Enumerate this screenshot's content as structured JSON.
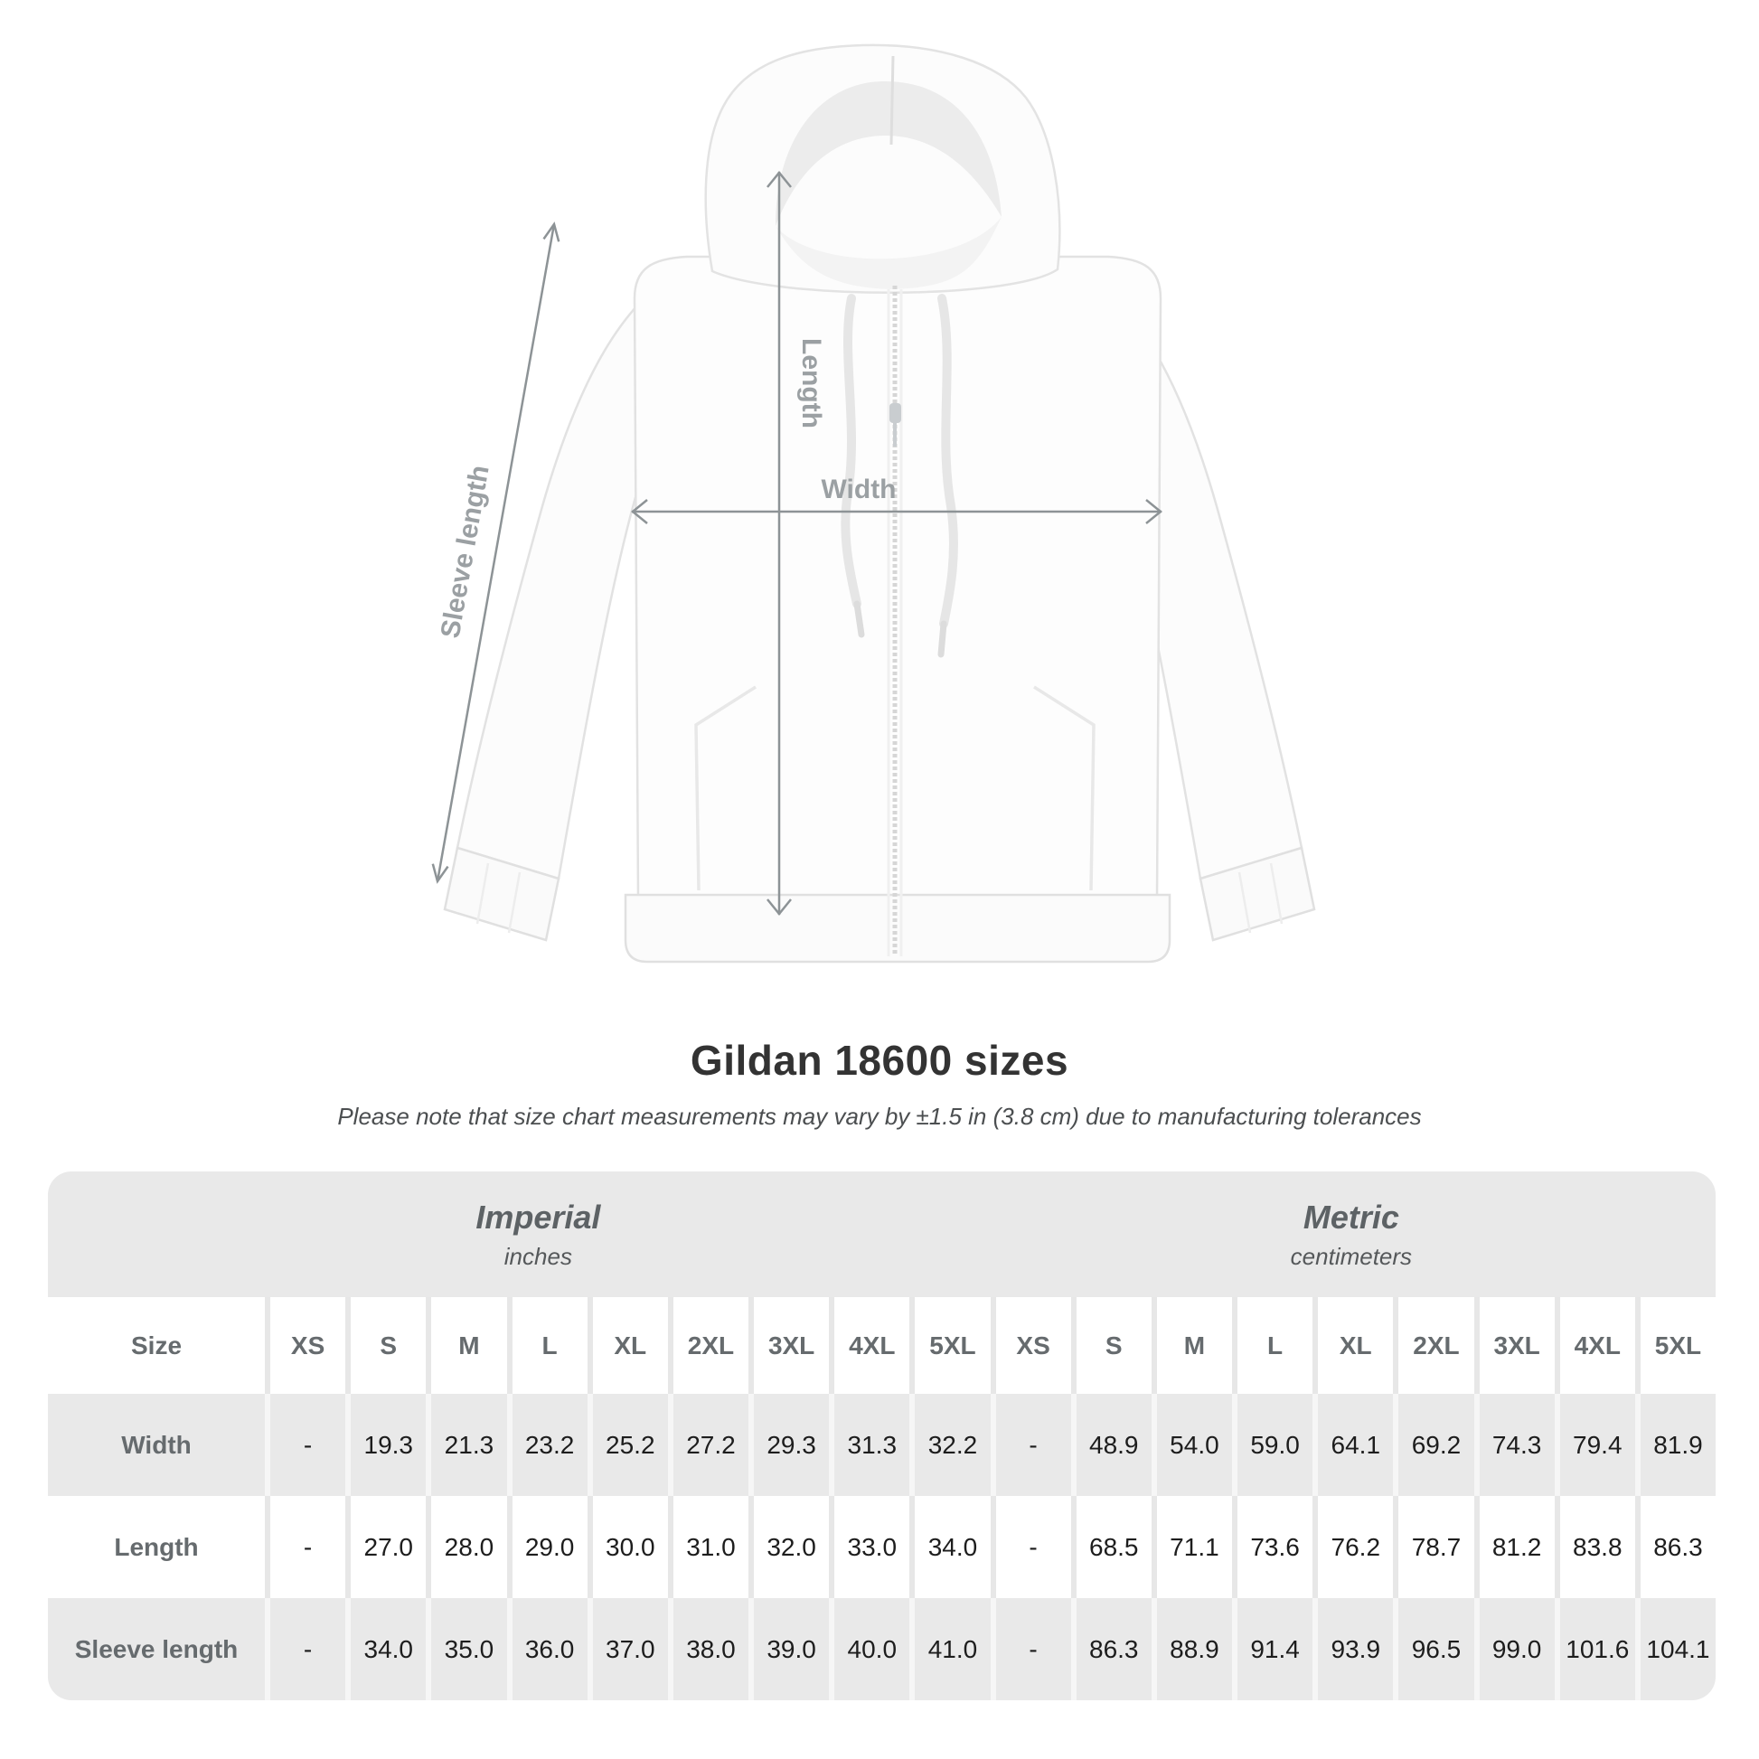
{
  "diagram": {
    "labels": {
      "length": "Length",
      "width": "Width",
      "sleeve": "Sleeve length"
    },
    "arrow_color": "#8d9396",
    "label_color": "#9ba0a3",
    "garment": "white zip hoodie illustration"
  },
  "title": "Gildan 18600 sizes",
  "subtitle": "Please note that size chart measurements may vary by ±1.5 in (3.8 cm) due to manufacturing tolerances",
  "table": {
    "size_header": "Size",
    "unit_groups": [
      {
        "label": "Imperial",
        "sublabel": "inches"
      },
      {
        "label": "Metric",
        "sublabel": "centimeters"
      }
    ],
    "sizes": [
      "XS",
      "S",
      "M",
      "L",
      "XL",
      "2XL",
      "3XL",
      "4XL",
      "5XL"
    ],
    "rows": [
      {
        "label": "Width",
        "imperial": [
          "-",
          "19.3",
          "21.3",
          "23.2",
          "25.2",
          "27.2",
          "29.3",
          "31.3",
          "32.2"
        ],
        "metric": [
          "-",
          "48.9",
          "54.0",
          "59.0",
          "64.1",
          "69.2",
          "74.3",
          "79.4",
          "81.9"
        ]
      },
      {
        "label": "Length",
        "imperial": [
          "-",
          "27.0",
          "28.0",
          "29.0",
          "30.0",
          "31.0",
          "32.0",
          "33.0",
          "34.0"
        ],
        "metric": [
          "-",
          "68.5",
          "71.1",
          "73.6",
          "76.2",
          "78.7",
          "81.2",
          "83.8",
          "86.3"
        ]
      },
      {
        "label": "Sleeve length",
        "imperial": [
          "-",
          "34.0",
          "35.0",
          "36.0",
          "37.0",
          "38.0",
          "39.0",
          "40.0",
          "41.0"
        ],
        "metric": [
          "-",
          "86.3",
          "88.9",
          "91.4",
          "93.9",
          "96.5",
          "99.0",
          "101.6",
          "104.1"
        ]
      }
    ],
    "colors": {
      "card_gray": "#e9e9e9",
      "row_white": "#ffffff",
      "value_text": "#1d1d1d",
      "header_text": "#666b6e"
    }
  }
}
